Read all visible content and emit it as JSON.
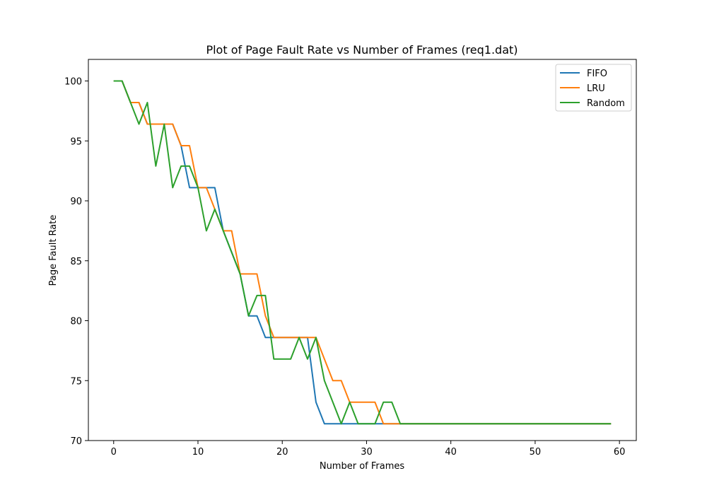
{
  "chart_data": {
    "type": "line",
    "title": "Plot of Page Fault Rate vs Number of Frames (req1.dat)",
    "xlabel": "Number of Frames",
    "ylabel": "Page Fault Rate",
    "xlim": [
      -3,
      62
    ],
    "ylim": [
      70,
      101.8
    ],
    "xticks": [
      0,
      10,
      20,
      30,
      40,
      50,
      60
    ],
    "yticks": [
      70,
      75,
      80,
      85,
      90,
      95,
      100
    ],
    "grid": false,
    "legend_position": "top-right",
    "x": [
      0,
      1,
      2,
      3,
      4,
      5,
      6,
      7,
      8,
      9,
      10,
      11,
      12,
      13,
      14,
      15,
      16,
      17,
      18,
      19,
      20,
      21,
      22,
      23,
      24,
      25,
      26,
      27,
      28,
      29,
      30,
      31,
      32,
      33,
      34,
      35,
      36,
      37,
      38,
      39,
      40,
      41,
      42,
      43,
      44,
      45,
      46,
      47,
      48,
      49,
      50,
      51,
      52,
      53,
      54,
      55,
      56,
      57,
      58,
      59
    ],
    "series": [
      {
        "name": "FIFO",
        "color": "#1f77b4",
        "values": [
          100,
          100,
          98.2,
          98.2,
          96.4,
          96.4,
          96.4,
          96.4,
          94.6,
          91.1,
          91.1,
          91.1,
          91.1,
          87.5,
          85.7,
          83.9,
          80.4,
          80.4,
          78.6,
          78.6,
          78.6,
          78.6,
          78.6,
          78.6,
          73.2,
          71.4,
          71.4,
          71.4,
          71.4,
          71.4,
          71.4,
          71.4,
          71.4,
          71.4,
          71.4,
          71.4,
          71.4,
          71.4,
          71.4,
          71.4,
          71.4,
          71.4,
          71.4,
          71.4,
          71.4,
          71.4,
          71.4,
          71.4,
          71.4,
          71.4,
          71.4,
          71.4,
          71.4,
          71.4,
          71.4,
          71.4,
          71.4,
          71.4,
          71.4,
          71.4
        ]
      },
      {
        "name": "LRU",
        "color": "#ff7f0e",
        "values": [
          100,
          100,
          98.2,
          98.2,
          96.4,
          96.4,
          96.4,
          96.4,
          94.6,
          94.6,
          91.1,
          91.1,
          89.3,
          87.5,
          87.5,
          83.9,
          83.9,
          83.9,
          80.4,
          78.6,
          78.6,
          78.6,
          78.6,
          78.6,
          78.6,
          76.8,
          75.0,
          75.0,
          73.2,
          73.2,
          73.2,
          73.2,
          71.4,
          71.4,
          71.4,
          71.4,
          71.4,
          71.4,
          71.4,
          71.4,
          71.4,
          71.4,
          71.4,
          71.4,
          71.4,
          71.4,
          71.4,
          71.4,
          71.4,
          71.4,
          71.4,
          71.4,
          71.4,
          71.4,
          71.4,
          71.4,
          71.4,
          71.4,
          71.4,
          71.4
        ]
      },
      {
        "name": "Random",
        "color": "#2ca02c",
        "values": [
          100,
          100,
          98.2,
          96.4,
          98.2,
          92.9,
          96.4,
          91.1,
          92.9,
          92.9,
          91.1,
          87.5,
          89.3,
          87.5,
          85.7,
          83.9,
          80.4,
          82.1,
          82.1,
          76.8,
          76.8,
          76.8,
          78.6,
          76.8,
          78.6,
          75.0,
          73.2,
          71.4,
          73.2,
          71.4,
          71.4,
          71.4,
          73.2,
          73.2,
          71.4,
          71.4,
          71.4,
          71.4,
          71.4,
          71.4,
          71.4,
          71.4,
          71.4,
          71.4,
          71.4,
          71.4,
          71.4,
          71.4,
          71.4,
          71.4,
          71.4,
          71.4,
          71.4,
          71.4,
          71.4,
          71.4,
          71.4,
          71.4,
          71.4,
          71.4
        ]
      }
    ]
  }
}
